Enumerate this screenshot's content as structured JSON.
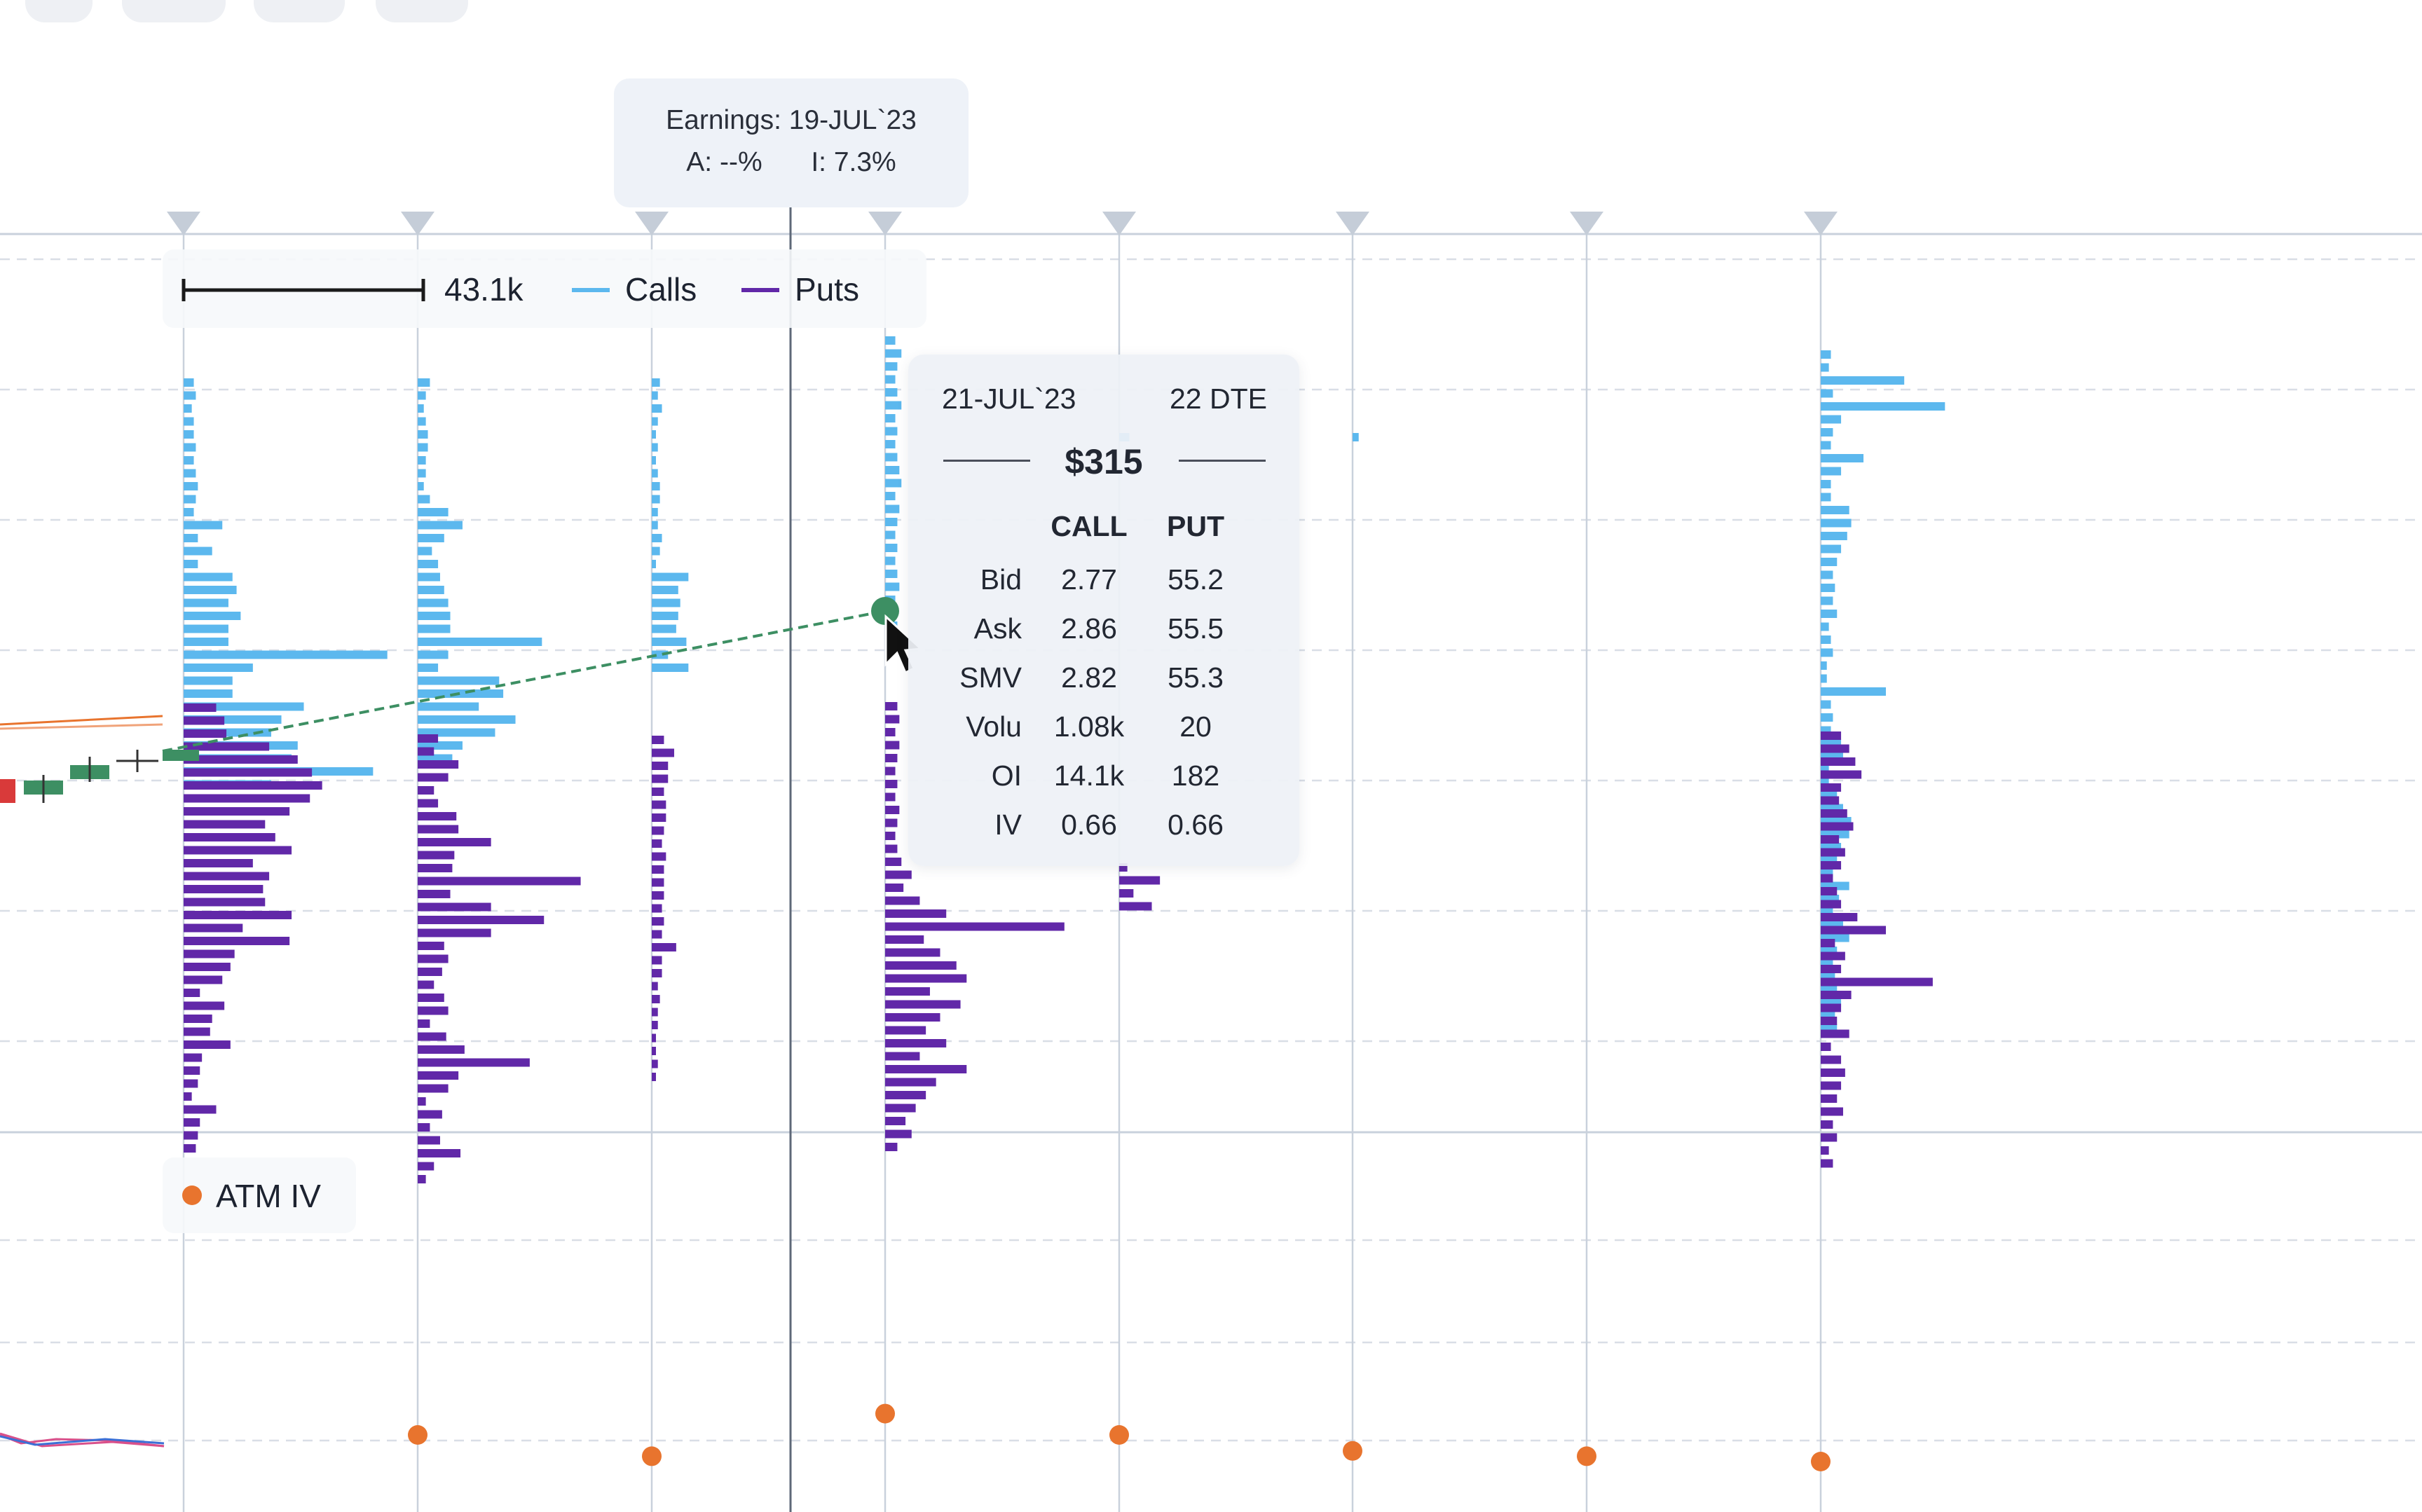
{
  "colors": {
    "calls": "#5cb8ee",
    "puts": "#6128a8",
    "atm_iv": "#e8742e",
    "price_up": "#3d8f63",
    "price_down": "#d93a3a",
    "grid": "#c9d1dc",
    "marker": "#c5cdd8"
  },
  "earnings": {
    "line1": "Earnings: 19-JUL`23",
    "line2_a": "A: --%",
    "line2_i": "I: 7.3%"
  },
  "legend": {
    "scale_value": "43.1k",
    "calls_label": "Calls",
    "puts_label": "Puts"
  },
  "iv_legend": {
    "label": "ATM IV"
  },
  "tooltip": {
    "date": "21-JUL`23",
    "dte": "22 DTE",
    "strike": "$315",
    "col_call": "CALL",
    "col_put": "PUT",
    "rows": [
      {
        "label": "Bid",
        "call": "2.77",
        "put": "55.2"
      },
      {
        "label": "Ask",
        "call": "2.86",
        "put": "55.5"
      },
      {
        "label": "SMV",
        "call": "2.82",
        "put": "55.3"
      },
      {
        "label": "Volu",
        "call": "1.08k",
        "put": "20"
      },
      {
        "label": "OI",
        "call": "14.1k",
        "put": "182"
      },
      {
        "label": "IV",
        "call": "0.66",
        "put": "0.66"
      }
    ]
  },
  "chart_data": {
    "type": "bar",
    "description_units": "open interest per strike; 43.1k reference",
    "scale_reference": 43100,
    "expiries": [
      {
        "calls": [
          0.05,
          0.06,
          0.04,
          0.05,
          0.05,
          0.06,
          0.05,
          0.06,
          0.07,
          0.06,
          0.05,
          0.19,
          0.07,
          0.14,
          0.07,
          0.24,
          0.26,
          0.22,
          0.28,
          0.22,
          0.22,
          1.0,
          0.34,
          0.24,
          0.24,
          0.59,
          0.48,
          0.43,
          0.56,
          0.53,
          0.93,
          0.43
        ],
        "puts": [
          0.16,
          0.2,
          0.21,
          0.42,
          0.56,
          0.63,
          0.68,
          0.62,
          0.52,
          0.4,
          0.45,
          0.53,
          0.34,
          0.42,
          0.39,
          0.4,
          0.53,
          0.29,
          0.52,
          0.25,
          0.23,
          0.19,
          0.08,
          0.2,
          0.14,
          0.13,
          0.23,
          0.09,
          0.08,
          0.07,
          0.04,
          0.16,
          0.08,
          0.07,
          0.06
        ]
      },
      {
        "calls": [
          0.06,
          0.04,
          0.03,
          0.04,
          0.05,
          0.05,
          0.04,
          0.04,
          0.03,
          0.06,
          0.15,
          0.22,
          0.13,
          0.07,
          0.1,
          0.11,
          0.13,
          0.15,
          0.16,
          0.16,
          0.61,
          0.15,
          0.1,
          0.4,
          0.42,
          0.3,
          0.48,
          0.38,
          0.22,
          0.17
        ],
        "puts": [
          0.1,
          0.08,
          0.2,
          0.15,
          0.08,
          0.1,
          0.19,
          0.2,
          0.36,
          0.18,
          0.17,
          0.8,
          0.16,
          0.36,
          0.62,
          0.36,
          0.13,
          0.15,
          0.12,
          0.08,
          0.13,
          0.15,
          0.06,
          0.14,
          0.23,
          0.55,
          0.2,
          0.15,
          0.04,
          0.12,
          0.06,
          0.11,
          0.21,
          0.08,
          0.04
        ]
      },
      {
        "calls": [
          0.04,
          0.03,
          0.05,
          0.03,
          0.02,
          0.03,
          0.02,
          0.03,
          0.04,
          0.04,
          0.03,
          0.03,
          0.05,
          0.04,
          0.02,
          0.18,
          0.13,
          0.14,
          0.13,
          0.12,
          0.17,
          0.08,
          0.18
        ],
        "puts": [
          0.06,
          0.11,
          0.08,
          0.08,
          0.06,
          0.07,
          0.07,
          0.06,
          0.05,
          0.07,
          0.06,
          0.06,
          0.06,
          0.05,
          0.06,
          0.05,
          0.12,
          0.05,
          0.05,
          0.03,
          0.04,
          0.03,
          0.03,
          0.02,
          0.02,
          0.03,
          0.02
        ]
      },
      {
        "calls": [
          0.05,
          0.08,
          0.06,
          0.05,
          0.06,
          0.08,
          0.05,
          0.06,
          0.05,
          0.06,
          0.07,
          0.08,
          0.05,
          0.07,
          0.06,
          0.05,
          0.06,
          0.05,
          0.06,
          0.07,
          0.05,
          0.06,
          0.06,
          0.08
        ],
        "puts": [
          0.06,
          0.07,
          0.05,
          0.07,
          0.06,
          0.05,
          0.06,
          0.05,
          0.07,
          0.06,
          0.05,
          0.06,
          0.08,
          0.13,
          0.09,
          0.17,
          0.3,
          0.88,
          0.19,
          0.27,
          0.35,
          0.4,
          0.22,
          0.37,
          0.27,
          0.2,
          0.3,
          0.17,
          0.4,
          0.25,
          0.2,
          0.15,
          0.1,
          0.13,
          0.06
        ]
      },
      {
        "calls": [
          0.05
        ],
        "puts": [
          0.04,
          0.2,
          0.07,
          0.16
        ]
      },
      {
        "calls": [
          0.03
        ],
        "puts": []
      },
      {
        "calls": [],
        "puts": []
      },
      {
        "calls": [
          0.05,
          0.04,
          0.41,
          0.06,
          0.61,
          0.1,
          0.06,
          0.05,
          0.21,
          0.1,
          0.05,
          0.05,
          0.14,
          0.15,
          0.13,
          0.1,
          0.08,
          0.06,
          0.07,
          0.06,
          0.08,
          0.04,
          0.05,
          0.06,
          0.03,
          0.03,
          0.32,
          0.05,
          0.06,
          0.05,
          0.1,
          0.11,
          0.04,
          0.04,
          0.08,
          0.11,
          0.15,
          0.14,
          0.1,
          0.08,
          0.06,
          0.14,
          0.09,
          0.06,
          0.11,
          0.14,
          0.08,
          0.06,
          0.07,
          0.08,
          0.1,
          0.07,
          0.08
        ],
        "puts": [
          0.1,
          0.14,
          0.17,
          0.2,
          0.1,
          0.09,
          0.13,
          0.16,
          0.09,
          0.12,
          0.1,
          0.06,
          0.08,
          0.1,
          0.18,
          0.32,
          0.07,
          0.12,
          0.1,
          0.55,
          0.15,
          0.1,
          0.08,
          0.14,
          0.05,
          0.1,
          0.12,
          0.1,
          0.08,
          0.11,
          0.06,
          0.08,
          0.04,
          0.06
        ]
      }
    ],
    "atm_iv": [
      null,
      0.7,
      0.66,
      0.74,
      0.7,
      0.67,
      0.66,
      0.65
    ],
    "hovered": {
      "expiry_index": 3,
      "strike": 315
    }
  }
}
